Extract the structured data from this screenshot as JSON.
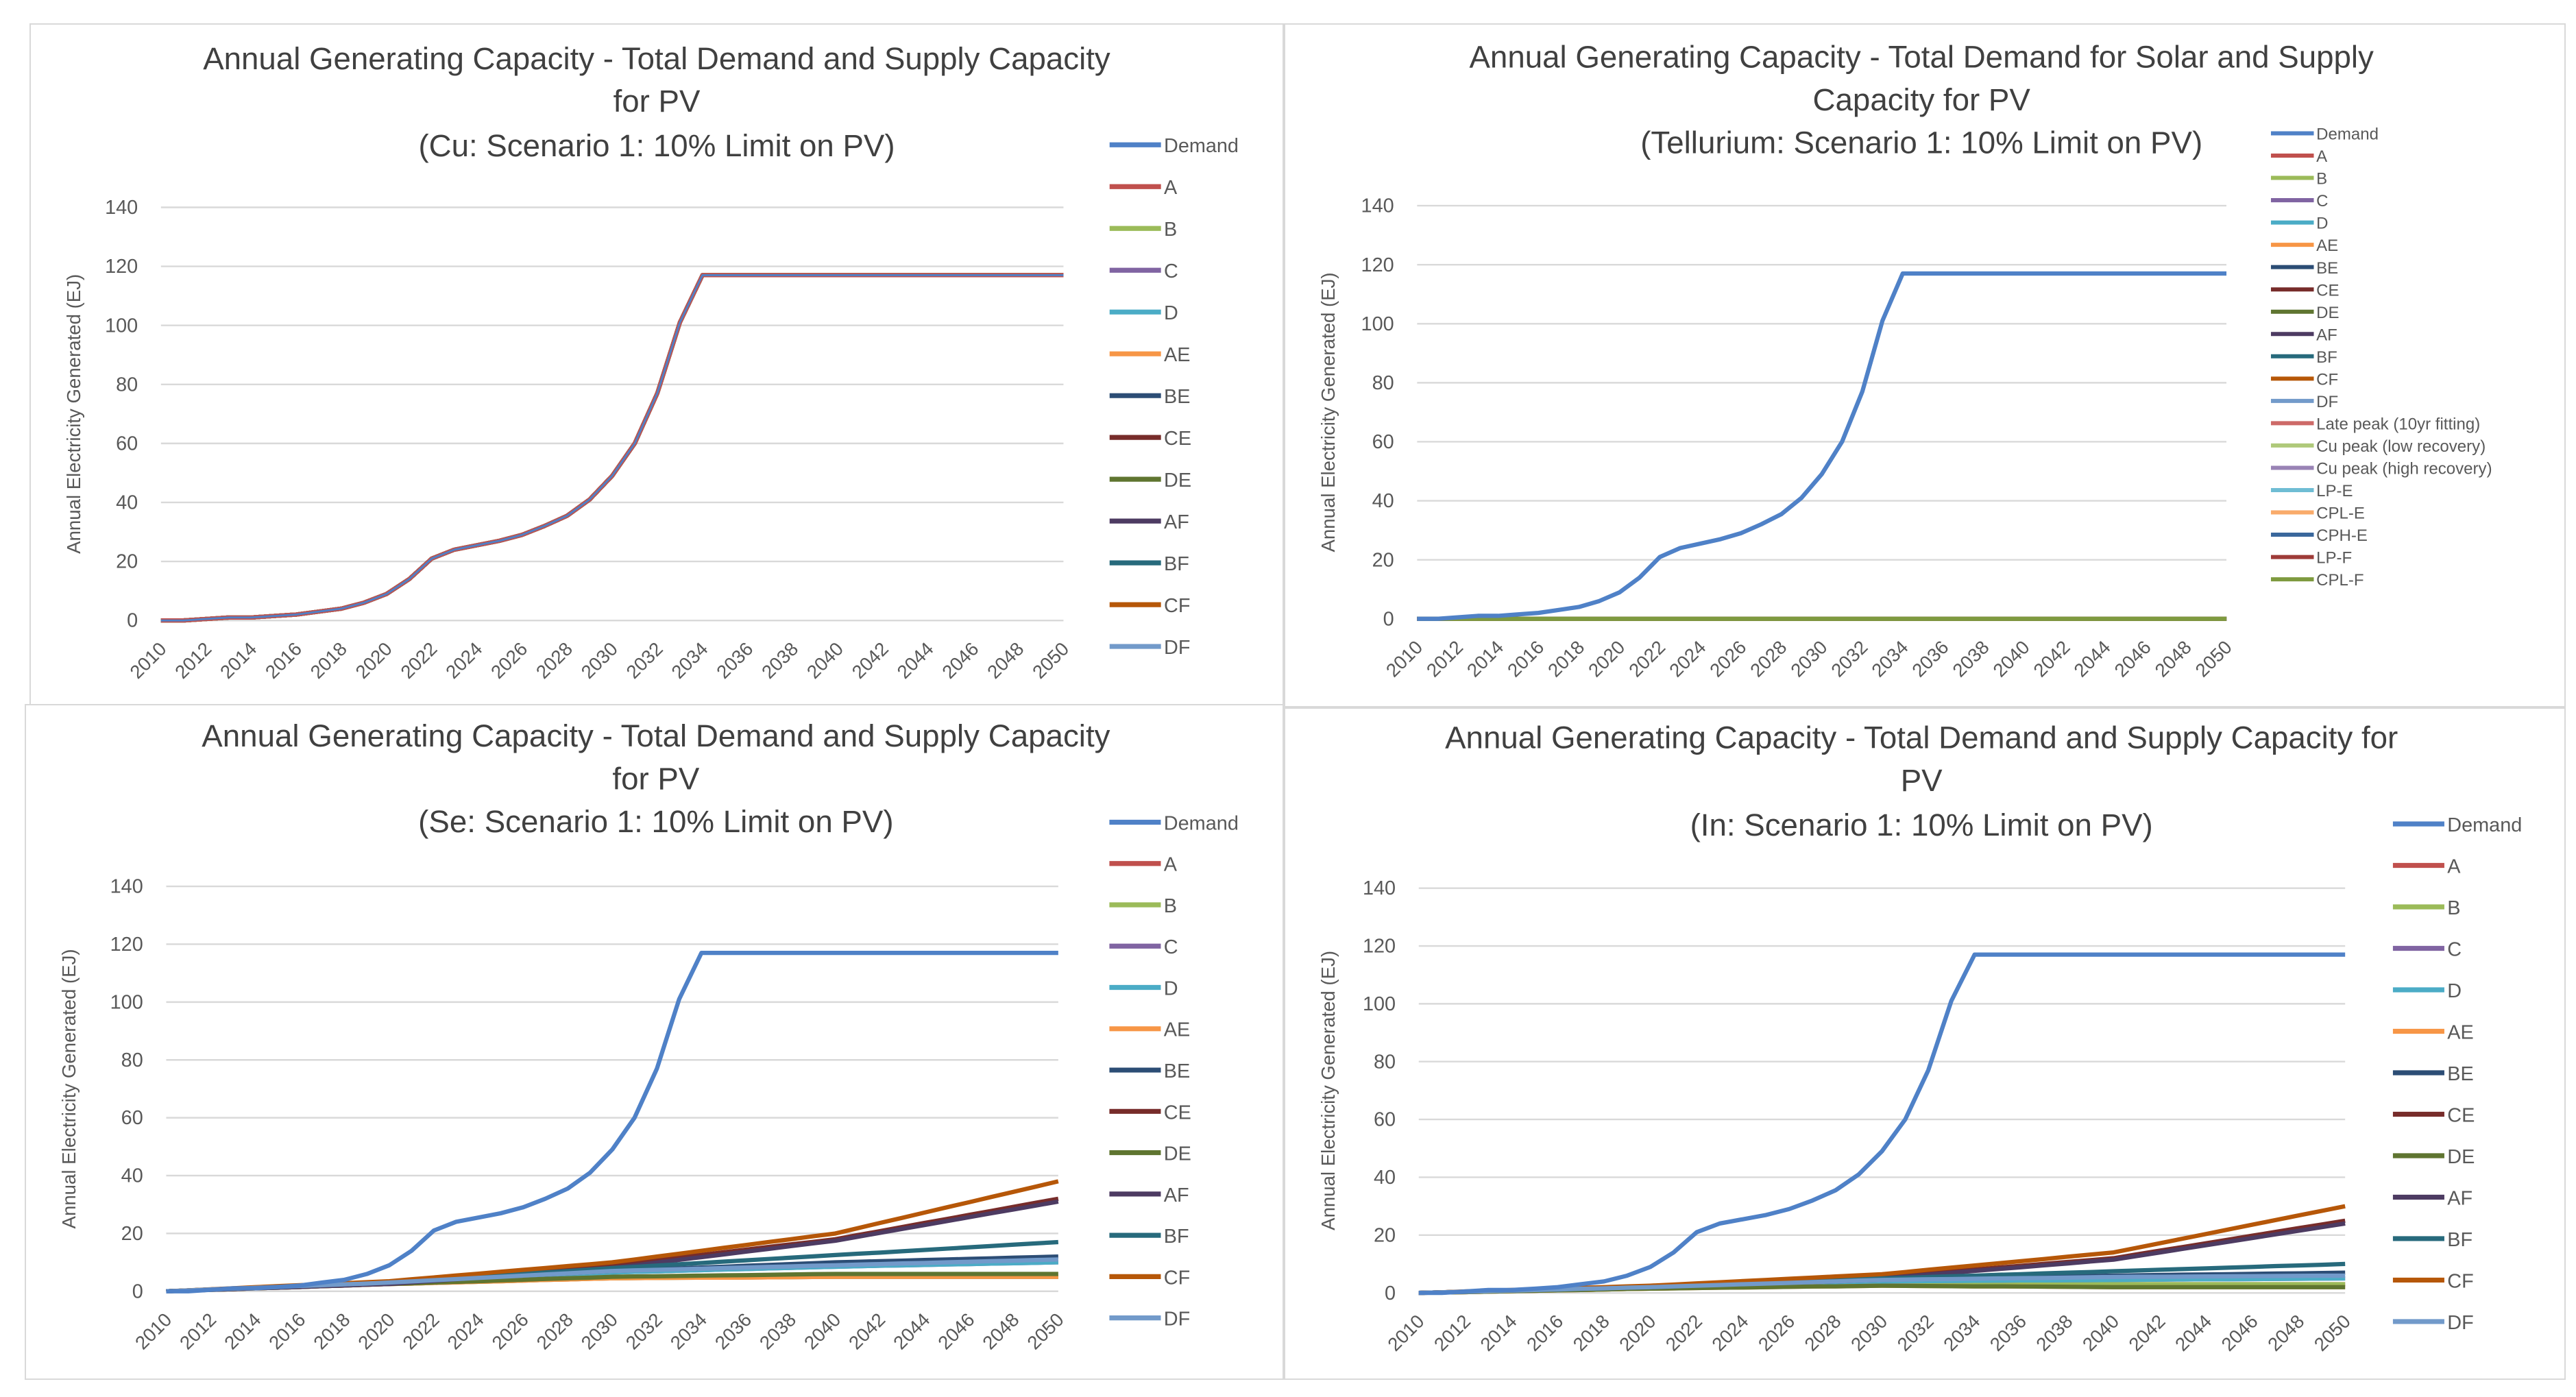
{
  "colors": {
    "Demand": "#4f81c7",
    "A": "#c0504d",
    "B": "#9bbb59",
    "C": "#8064a2",
    "D": "#4bacc6",
    "AE": "#f79646",
    "BE": "#2c4d75",
    "CE": "#772c2a",
    "DE": "#5f7530",
    "AF": "#4d3b62",
    "BF": "#276a7c",
    "CF": "#b65708",
    "DF": "#729aca",
    "Late peak (10yr fitting)": "#cd6a68",
    "Cu peak (low recovery)": "#afc97a",
    "Cu peak (high recovery)": "#9983b5",
    "LP-E": "#6fbdd4",
    "CPL-E": "#f9ab6b",
    "CPH-E": "#3a679c",
    "LP-F": "#9e3b38",
    "CPL-F": "#7e9a3f"
  },
  "demand_values": [
    0,
    0,
    0.5,
    1,
    1,
    1.5,
    2,
    3,
    4,
    6,
    9,
    14,
    21,
    24,
    25.5,
    27,
    29,
    32,
    35.5,
    41,
    49,
    60,
    77,
    101,
    117,
    117,
    117,
    117,
    117,
    117,
    117,
    117,
    117,
    117,
    117,
    117,
    117,
    117,
    117,
    117,
    117
  ],
  "chart_data": [
    {
      "type": "line",
      "title": [
        "Annual Generating Capacity - Total Demand and Supply Capacity",
        "for PV",
        "(Cu: Scenario 1: 10% Limit on PV)"
      ],
      "xlabel": "",
      "ylabel": "Annual Electricity Generated (EJ)",
      "ylim": [
        0,
        140
      ],
      "yticks": [
        "0",
        "20",
        "40",
        "60",
        "80",
        "100",
        "120",
        "140"
      ],
      "x": [
        "2010",
        "2012",
        "2014",
        "2016",
        "2018",
        "2020",
        "2022",
        "2024",
        "2026",
        "2028",
        "2030",
        "2032",
        "2034",
        "2036",
        "2038",
        "2040",
        "2042",
        "2044",
        "2046",
        "2048",
        "2050"
      ],
      "legend_position": "right",
      "grid": true,
      "series": [
        {
          "name": "Demand",
          "values": "demand"
        },
        {
          "name": "A",
          "values": "demand"
        },
        {
          "name": "B",
          "values": "demand"
        },
        {
          "name": "C",
          "values": "demand"
        },
        {
          "name": "D",
          "values": "demand"
        },
        {
          "name": "AE",
          "values": "demand"
        },
        {
          "name": "BE",
          "values": "demand"
        },
        {
          "name": "CE",
          "values": "demand"
        },
        {
          "name": "DE",
          "values": "demand"
        },
        {
          "name": "AF",
          "values": "demand"
        },
        {
          "name": "BF",
          "values": "demand"
        },
        {
          "name": "CF",
          "values": "demand"
        },
        {
          "name": "DF",
          "values": "demand"
        }
      ]
    },
    {
      "type": "line",
      "title": [
        "Annual Generating Capacity - Total Demand for Solar and Supply",
        "Capacity for PV",
        "(Tellurium: Scenario 1: 10% Limit on PV)"
      ],
      "xlabel": "",
      "ylabel": "Annual Electricity Generated (EJ)",
      "ylim": [
        0,
        140
      ],
      "yticks": [
        "0",
        "20",
        "40",
        "60",
        "80",
        "100",
        "120",
        "140"
      ],
      "x": [
        "2010",
        "2012",
        "2014",
        "2016",
        "2018",
        "2020",
        "2022",
        "2024",
        "2026",
        "2028",
        "2030",
        "2032",
        "2034",
        "2036",
        "2038",
        "2040",
        "2042",
        "2044",
        "2046",
        "2048",
        "2050"
      ],
      "legend_position": "right",
      "grid": true,
      "series": [
        {
          "name": "Demand",
          "values": "demand"
        },
        {
          "name": "A",
          "points": [
            [
              2010,
              0
            ],
            [
              2050,
              0
            ]
          ]
        },
        {
          "name": "B",
          "points": [
            [
              2010,
              0
            ],
            [
              2050,
              0
            ]
          ]
        },
        {
          "name": "C",
          "points": [
            [
              2010,
              0
            ],
            [
              2050,
              0
            ]
          ]
        },
        {
          "name": "D",
          "points": [
            [
              2010,
              0
            ],
            [
              2050,
              0
            ]
          ]
        },
        {
          "name": "AE",
          "points": [
            [
              2010,
              0
            ],
            [
              2050,
              0
            ]
          ]
        },
        {
          "name": "BE",
          "points": [
            [
              2010,
              0
            ],
            [
              2050,
              0
            ]
          ]
        },
        {
          "name": "CE",
          "points": [
            [
              2010,
              0
            ],
            [
              2050,
              0
            ]
          ]
        },
        {
          "name": "DE",
          "points": [
            [
              2010,
              0
            ],
            [
              2050,
              0
            ]
          ]
        },
        {
          "name": "AF",
          "points": [
            [
              2010,
              0
            ],
            [
              2050,
              0
            ]
          ]
        },
        {
          "name": "BF",
          "points": [
            [
              2010,
              0
            ],
            [
              2050,
              0
            ]
          ]
        },
        {
          "name": "CF",
          "points": [
            [
              2010,
              0
            ],
            [
              2050,
              0
            ]
          ]
        },
        {
          "name": "DF",
          "points": [
            [
              2010,
              0
            ],
            [
              2050,
              0
            ]
          ]
        },
        {
          "name": "Late peak (10yr fitting)",
          "points": [
            [
              2010,
              0
            ],
            [
              2050,
              0
            ]
          ]
        },
        {
          "name": "Cu peak (low recovery)",
          "points": [
            [
              2010,
              0
            ],
            [
              2050,
              0
            ]
          ]
        },
        {
          "name": "Cu peak (high recovery)",
          "points": [
            [
              2010,
              0
            ],
            [
              2050,
              0
            ]
          ]
        },
        {
          "name": "LP-E",
          "points": [
            [
              2010,
              0
            ],
            [
              2050,
              0
            ]
          ]
        },
        {
          "name": "CPL-E",
          "points": [
            [
              2010,
              0
            ],
            [
              2050,
              0
            ]
          ]
        },
        {
          "name": "CPH-E",
          "points": [
            [
              2010,
              0
            ],
            [
              2050,
              0
            ]
          ]
        },
        {
          "name": "LP-F",
          "points": [
            [
              2010,
              0
            ],
            [
              2050,
              0
            ]
          ]
        },
        {
          "name": "CPL-F",
          "points": [
            [
              2010,
              0
            ],
            [
              2050,
              0
            ]
          ]
        }
      ]
    },
    {
      "type": "line",
      "title": [
        "Annual Generating Capacity - Total Demand and Supply Capacity",
        "for PV",
        "(Se: Scenario 1: 10% Limit on PV)"
      ],
      "xlabel": "",
      "ylabel": "Annual Electricity Generated (EJ)",
      "ylim": [
        0,
        140
      ],
      "yticks": [
        "0",
        "20",
        "40",
        "60",
        "80",
        "100",
        "120",
        "140"
      ],
      "x": [
        "2010",
        "2012",
        "2014",
        "2016",
        "2018",
        "2020",
        "2022",
        "2024",
        "2026",
        "2028",
        "2030",
        "2032",
        "2034",
        "2036",
        "2038",
        "2040",
        "2042",
        "2044",
        "2046",
        "2048",
        "2050"
      ],
      "legend_position": "right",
      "grid": true,
      "series": [
        {
          "name": "Demand",
          "values": "demand"
        },
        {
          "name": "A",
          "points": [
            [
              2010,
              0
            ],
            [
              2020,
              2.5
            ],
            [
              2030,
              4.5
            ],
            [
              2040,
              5
            ],
            [
              2050,
              5
            ]
          ]
        },
        {
          "name": "B",
          "points": [
            [
              2010,
              0
            ],
            [
              2020,
              2.5
            ],
            [
              2030,
              4.5
            ],
            [
              2040,
              5
            ],
            [
              2050,
              5
            ]
          ]
        },
        {
          "name": "C",
          "points": [
            [
              2010,
              0
            ],
            [
              2020,
              3
            ],
            [
              2030,
              6.5
            ],
            [
              2040,
              8.5
            ],
            [
              2050,
              10
            ]
          ]
        },
        {
          "name": "D",
          "points": [
            [
              2010,
              0
            ],
            [
              2020,
              3
            ],
            [
              2030,
              6.5
            ],
            [
              2040,
              8.5
            ],
            [
              2050,
              10
            ]
          ]
        },
        {
          "name": "AE",
          "points": [
            [
              2010,
              0
            ],
            [
              2020,
              2.5
            ],
            [
              2030,
              4.5
            ],
            [
              2040,
              5
            ],
            [
              2050,
              5
            ]
          ]
        },
        {
          "name": "BE",
          "points": [
            [
              2010,
              0
            ],
            [
              2020,
              3
            ],
            [
              2030,
              7
            ],
            [
              2040,
              10
            ],
            [
              2050,
              12
            ]
          ]
        },
        {
          "name": "CE",
          "points": [
            [
              2010,
              0
            ],
            [
              2020,
              3
            ],
            [
              2030,
              9
            ],
            [
              2040,
              18
            ],
            [
              2050,
              32
            ]
          ]
        },
        {
          "name": "DE",
          "points": [
            [
              2010,
              0
            ],
            [
              2020,
              2.5
            ],
            [
              2030,
              5
            ],
            [
              2040,
              6
            ],
            [
              2050,
              6
            ]
          ]
        },
        {
          "name": "AF",
          "points": [
            [
              2010,
              0
            ],
            [
              2020,
              2.5
            ],
            [
              2030,
              8
            ],
            [
              2040,
              17.5
            ],
            [
              2050,
              31
            ]
          ]
        },
        {
          "name": "BF",
          "points": [
            [
              2010,
              0
            ],
            [
              2020,
              3
            ],
            [
              2030,
              8
            ],
            [
              2040,
              12.5
            ],
            [
              2050,
              17
            ]
          ]
        },
        {
          "name": "CF",
          "points": [
            [
              2010,
              0
            ],
            [
              2020,
              3.5
            ],
            [
              2030,
              10
            ],
            [
              2040,
              20
            ],
            [
              2050,
              38
            ]
          ]
        },
        {
          "name": "DF",
          "points": [
            [
              2010,
              0
            ],
            [
              2020,
              3
            ],
            [
              2030,
              7
            ],
            [
              2040,
              9
            ],
            [
              2050,
              11
            ]
          ]
        }
      ]
    },
    {
      "type": "line",
      "title": [
        "Annual Generating Capacity - Total Demand and Supply Capacity for",
        "PV",
        "(In: Scenario 1: 10% Limit on PV)"
      ],
      "xlabel": "",
      "ylabel": "Annual Electricity Generated (EJ)",
      "ylim": [
        0,
        140
      ],
      "yticks": [
        "0",
        "20",
        "40",
        "60",
        "80",
        "100",
        "120",
        "140"
      ],
      "x": [
        "2010",
        "2012",
        "2014",
        "2016",
        "2018",
        "2020",
        "2022",
        "2024",
        "2026",
        "2028",
        "2030",
        "2032",
        "2034",
        "2036",
        "2038",
        "2040",
        "2042",
        "2044",
        "2046",
        "2048",
        "2050"
      ],
      "legend_position": "right",
      "grid": true,
      "series": [
        {
          "name": "Demand",
          "values": "demand"
        },
        {
          "name": "A",
          "points": [
            [
              2010,
              0
            ],
            [
              2020,
              1.5
            ],
            [
              2030,
              3
            ],
            [
              2040,
              3
            ],
            [
              2050,
              3
            ]
          ]
        },
        {
          "name": "B",
          "points": [
            [
              2010,
              0
            ],
            [
              2020,
              1.5
            ],
            [
              2030,
              3
            ],
            [
              2040,
              3
            ],
            [
              2050,
              3
            ]
          ]
        },
        {
          "name": "C",
          "points": [
            [
              2010,
              0
            ],
            [
              2020,
              2
            ],
            [
              2030,
              4
            ],
            [
              2040,
              4.5
            ],
            [
              2050,
              5
            ]
          ]
        },
        {
          "name": "D",
          "points": [
            [
              2010,
              0
            ],
            [
              2020,
              2
            ],
            [
              2030,
              4
            ],
            [
              2040,
              4.5
            ],
            [
              2050,
              5
            ]
          ]
        },
        {
          "name": "AE",
          "points": [
            [
              2010,
              0
            ],
            [
              2020,
              1.5
            ],
            [
              2030,
              2.5
            ],
            [
              2040,
              2
            ],
            [
              2050,
              2
            ]
          ]
        },
        {
          "name": "BE",
          "points": [
            [
              2010,
              0
            ],
            [
              2020,
              2
            ],
            [
              2030,
              4.5
            ],
            [
              2040,
              6
            ],
            [
              2050,
              7
            ]
          ]
        },
        {
          "name": "CE",
          "points": [
            [
              2010,
              0
            ],
            [
              2020,
              2
            ],
            [
              2030,
              5.5
            ],
            [
              2040,
              12
            ],
            [
              2050,
              25
            ]
          ]
        },
        {
          "name": "DE",
          "points": [
            [
              2010,
              0
            ],
            [
              2020,
              1.5
            ],
            [
              2030,
              2.5
            ],
            [
              2040,
              2
            ],
            [
              2050,
              2
            ]
          ]
        },
        {
          "name": "AF",
          "points": [
            [
              2010,
              0
            ],
            [
              2020,
              2
            ],
            [
              2030,
              5
            ],
            [
              2040,
              11.5
            ],
            [
              2050,
              24
            ]
          ]
        },
        {
          "name": "BF",
          "points": [
            [
              2010,
              0
            ],
            [
              2020,
              2
            ],
            [
              2030,
              5
            ],
            [
              2040,
              7.5
            ],
            [
              2050,
              10
            ]
          ]
        },
        {
          "name": "CF",
          "points": [
            [
              2010,
              0
            ],
            [
              2020,
              2.5
            ],
            [
              2030,
              6.5
            ],
            [
              2040,
              14
            ],
            [
              2050,
              30
            ]
          ]
        },
        {
          "name": "DF",
          "points": [
            [
              2010,
              0
            ],
            [
              2020,
              2
            ],
            [
              2030,
              4.5
            ],
            [
              2040,
              5.5
            ],
            [
              2050,
              6
            ]
          ]
        }
      ]
    }
  ]
}
